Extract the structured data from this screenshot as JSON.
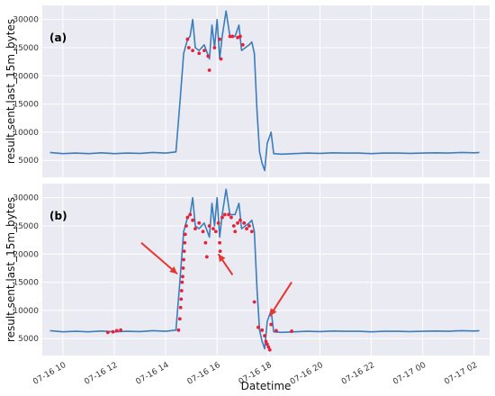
{
  "colors": {
    "background": "#eaeaf2",
    "grid": "#ffffff",
    "series": "#3b7dbd",
    "anomaly": "#e8213a",
    "arrow": "#e8352f"
  },
  "chart_data": [
    {
      "type": "line",
      "panel_label": "(a)",
      "ylabel": "result.sent.last_15m_bytes",
      "xlabel": "",
      "x_unit": "hours since 07-16 00:00",
      "xlim": [
        9.2,
        26.6
      ],
      "ylim": [
        2000,
        32500
      ],
      "yticks": [
        5000,
        10000,
        15000,
        20000,
        25000,
        30000
      ],
      "grid": true,
      "series": [
        {
          "values": [
            [
              9.5,
              6400
            ],
            [
              10.0,
              6200
            ],
            [
              10.5,
              6300
            ],
            [
              11.0,
              6200
            ],
            [
              11.5,
              6350
            ],
            [
              12.0,
              6200
            ],
            [
              12.5,
              6300
            ],
            [
              13.0,
              6250
            ],
            [
              13.5,
              6400
            ],
            [
              14.0,
              6300
            ],
            [
              14.4,
              6500
            ],
            [
              14.55,
              15000
            ],
            [
              14.7,
              24000
            ],
            [
              14.85,
              26500
            ],
            [
              14.95,
              27000
            ],
            [
              15.05,
              30000
            ],
            [
              15.15,
              25000
            ],
            [
              15.3,
              24500
            ],
            [
              15.5,
              25500
            ],
            [
              15.7,
              23000
            ],
            [
              15.8,
              29000
            ],
            [
              15.9,
              25000
            ],
            [
              16.0,
              30000
            ],
            [
              16.1,
              23000
            ],
            [
              16.2,
              27000
            ],
            [
              16.35,
              31500
            ],
            [
              16.5,
              27000
            ],
            [
              16.7,
              27000
            ],
            [
              16.85,
              29000
            ],
            [
              16.95,
              24500
            ],
            [
              17.1,
              25000
            ],
            [
              17.25,
              25500
            ],
            [
              17.35,
              26000
            ],
            [
              17.45,
              24000
            ],
            [
              17.55,
              14000
            ],
            [
              17.65,
              6500
            ],
            [
              17.75,
              4500
            ],
            [
              17.85,
              3200
            ],
            [
              17.95,
              8000
            ],
            [
              18.1,
              10000
            ],
            [
              18.2,
              6200
            ],
            [
              18.5,
              6100
            ],
            [
              19.0,
              6200
            ],
            [
              19.5,
              6300
            ],
            [
              20.0,
              6250
            ],
            [
              20.5,
              6350
            ],
            [
              21.0,
              6300
            ],
            [
              21.5,
              6300
            ],
            [
              22.0,
              6200
            ],
            [
              22.5,
              6300
            ],
            [
              23.0,
              6300
            ],
            [
              23.5,
              6250
            ],
            [
              24.0,
              6300
            ],
            [
              24.5,
              6350
            ],
            [
              25.0,
              6300
            ],
            [
              25.5,
              6400
            ],
            [
              26.0,
              6350
            ],
            [
              26.2,
              6400
            ]
          ]
        }
      ],
      "anomalies": [
        [
          14.85,
          26500
        ],
        [
          14.9,
          25000
        ],
        [
          15.05,
          24500
        ],
        [
          15.3,
          24000
        ],
        [
          15.5,
          24500
        ],
        [
          15.65,
          23500
        ],
        [
          15.7,
          21000
        ],
        [
          15.9,
          25000
        ],
        [
          16.1,
          26500
        ],
        [
          16.15,
          23000
        ],
        [
          16.5,
          27000
        ],
        [
          16.6,
          27000
        ],
        [
          16.8,
          26800
        ],
        [
          16.9,
          27000
        ],
        [
          17.0,
          25500
        ]
      ]
    },
    {
      "type": "line",
      "panel_label": "(b)",
      "ylabel": "result.sent.last_15m_bytes",
      "xlabel": "Datetime",
      "x_unit": "hours since 07-16 00:00",
      "xlim": [
        9.2,
        26.6
      ],
      "ylim": [
        2000,
        32500
      ],
      "yticks": [
        5000,
        10000,
        15000,
        20000,
        25000,
        30000
      ],
      "xticks": [
        "07-16 10",
        "07-16 12",
        "07-16 14",
        "07-16 16",
        "07-16 18",
        "07-16 20",
        "07-16 22",
        "07-17 00",
        "07-17 02"
      ],
      "grid": true,
      "series": [
        {
          "values": [
            [
              9.5,
              6400
            ],
            [
              10.0,
              6200
            ],
            [
              10.5,
              6300
            ],
            [
              11.0,
              6200
            ],
            [
              11.5,
              6350
            ],
            [
              12.0,
              6200
            ],
            [
              12.5,
              6300
            ],
            [
              13.0,
              6250
            ],
            [
              13.5,
              6400
            ],
            [
              14.0,
              6300
            ],
            [
              14.4,
              6500
            ],
            [
              14.55,
              15000
            ],
            [
              14.7,
              24000
            ],
            [
              14.85,
              26500
            ],
            [
              14.95,
              27000
            ],
            [
              15.05,
              30000
            ],
            [
              15.15,
              25000
            ],
            [
              15.3,
              24500
            ],
            [
              15.5,
              25500
            ],
            [
              15.7,
              23000
            ],
            [
              15.8,
              29000
            ],
            [
              15.9,
              25000
            ],
            [
              16.0,
              30000
            ],
            [
              16.1,
              23000
            ],
            [
              16.2,
              27000
            ],
            [
              16.35,
              31500
            ],
            [
              16.5,
              27000
            ],
            [
              16.7,
              27000
            ],
            [
              16.85,
              29000
            ],
            [
              16.95,
              24500
            ],
            [
              17.1,
              25000
            ],
            [
              17.25,
              25500
            ],
            [
              17.35,
              26000
            ],
            [
              17.45,
              24000
            ],
            [
              17.55,
              14000
            ],
            [
              17.65,
              6500
            ],
            [
              17.75,
              4500
            ],
            [
              17.85,
              3200
            ],
            [
              17.95,
              8000
            ],
            [
              18.1,
              10000
            ],
            [
              18.2,
              6200
            ],
            [
              18.5,
              6100
            ],
            [
              19.0,
              6200
            ],
            [
              19.5,
              6300
            ],
            [
              20.0,
              6250
            ],
            [
              20.5,
              6350
            ],
            [
              21.0,
              6300
            ],
            [
              21.5,
              6300
            ],
            [
              22.0,
              6200
            ],
            [
              22.5,
              6300
            ],
            [
              23.0,
              6300
            ],
            [
              23.5,
              6250
            ],
            [
              24.0,
              6300
            ],
            [
              24.5,
              6350
            ],
            [
              25.0,
              6300
            ],
            [
              25.5,
              6400
            ],
            [
              26.0,
              6350
            ],
            [
              26.2,
              6400
            ]
          ]
        }
      ],
      "anomalies": [
        [
          11.75,
          6100
        ],
        [
          11.95,
          6200
        ],
        [
          12.1,
          6400
        ],
        [
          12.25,
          6500
        ],
        [
          14.5,
          6500
        ],
        [
          14.55,
          8500
        ],
        [
          14.58,
          10500
        ],
        [
          14.6,
          12000
        ],
        [
          14.62,
          13500
        ],
        [
          14.64,
          15000
        ],
        [
          14.66,
          16000
        ],
        [
          14.68,
          17500
        ],
        [
          14.7,
          19000
        ],
        [
          14.72,
          20500
        ],
        [
          14.74,
          22000
        ],
        [
          14.76,
          23500
        ],
        [
          14.8,
          25000
        ],
        [
          14.85,
          26500
        ],
        [
          14.95,
          27000
        ],
        [
          15.05,
          26000
        ],
        [
          15.15,
          24500
        ],
        [
          15.3,
          25500
        ],
        [
          15.45,
          24000
        ],
        [
          15.55,
          22000
        ],
        [
          15.6,
          19500
        ],
        [
          15.7,
          25000
        ],
        [
          15.85,
          24500
        ],
        [
          15.95,
          24000
        ],
        [
          16.05,
          25500
        ],
        [
          16.1,
          22000
        ],
        [
          16.12,
          20500
        ],
        [
          16.2,
          26500
        ],
        [
          16.3,
          27000
        ],
        [
          16.45,
          27000
        ],
        [
          16.55,
          26500
        ],
        [
          16.65,
          25000
        ],
        [
          16.7,
          24000
        ],
        [
          16.8,
          25500
        ],
        [
          16.9,
          26000
        ],
        [
          17.05,
          25500
        ],
        [
          17.15,
          24500
        ],
        [
          17.25,
          25000
        ],
        [
          17.35,
          24000
        ],
        [
          17.45,
          11500
        ],
        [
          17.6,
          7000
        ],
        [
          17.75,
          6500
        ],
        [
          17.85,
          5500
        ],
        [
          17.9,
          4500
        ],
        [
          17.95,
          4000
        ],
        [
          18.0,
          3500
        ],
        [
          18.05,
          3000
        ],
        [
          18.1,
          7500
        ],
        [
          18.3,
          6400
        ],
        [
          18.9,
          6300
        ]
      ]
    }
  ]
}
